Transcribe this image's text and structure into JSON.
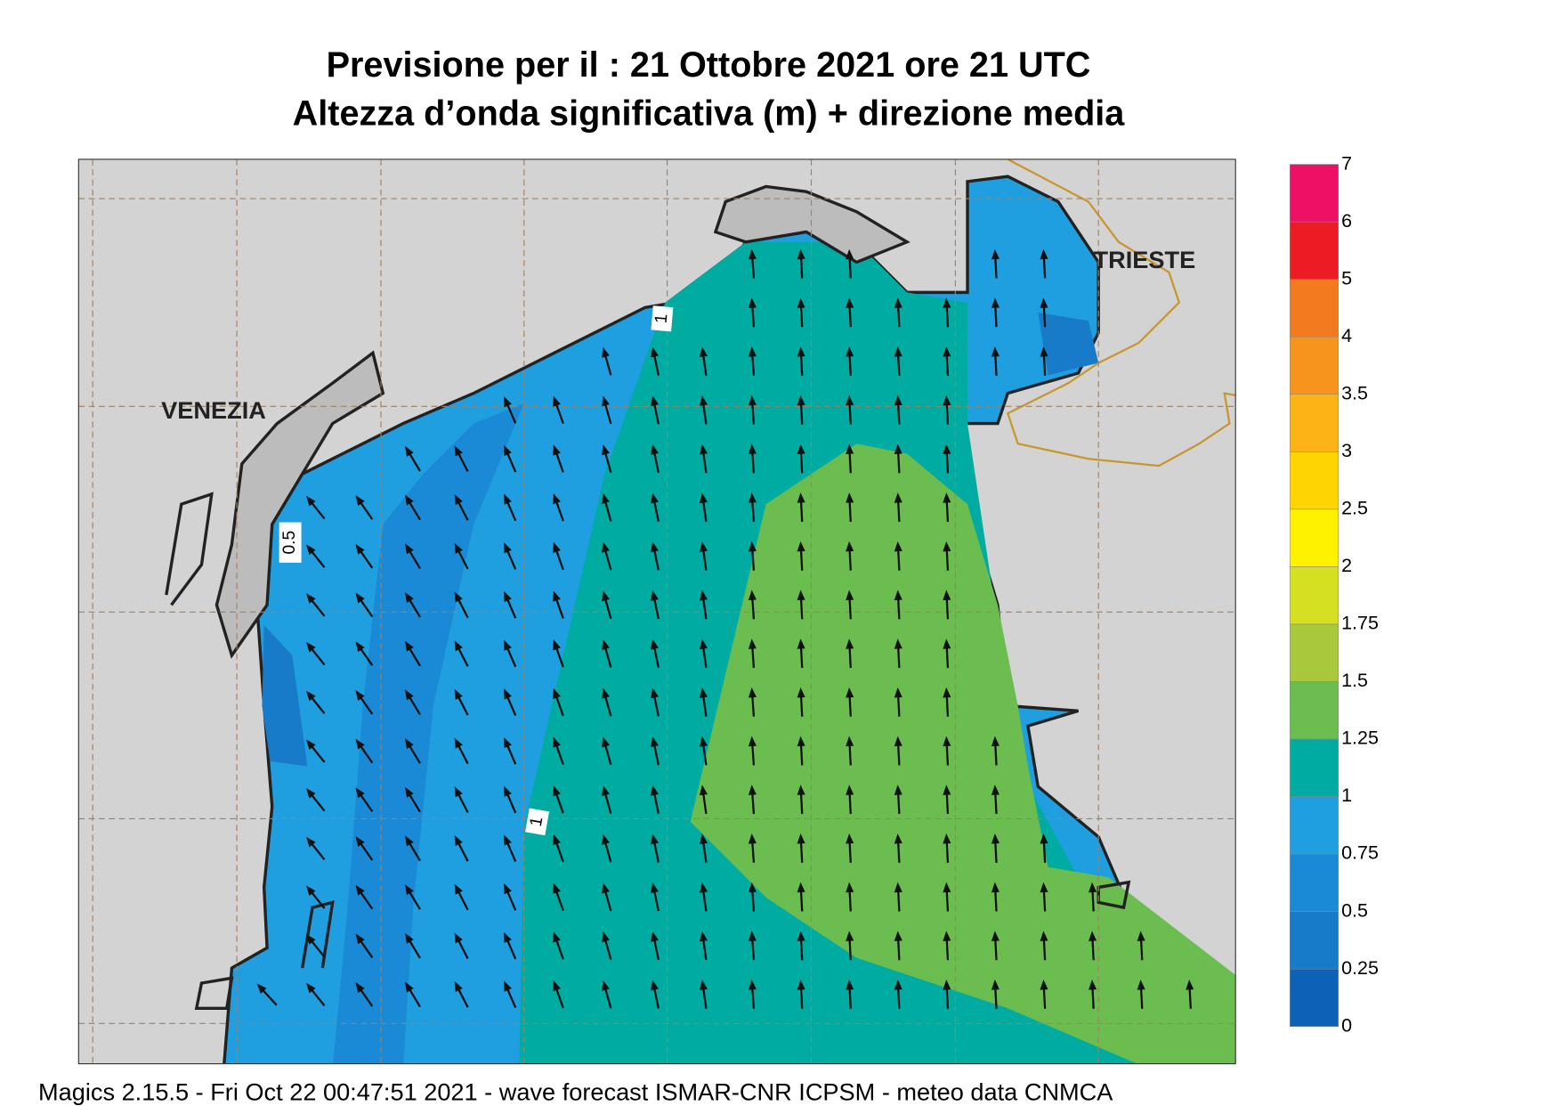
{
  "header": {
    "title": [
      "Previsione per il  :  21  Ottobre  2021   ore 21 UTC",
      "Altezza d’onda significativa (m) + direzione media"
    ]
  },
  "map": {
    "places": [
      "VENEZIA",
      "TRIESTE"
    ],
    "contour_labels": [
      "1",
      "0.5",
      "1"
    ]
  },
  "legend": {
    "levels": [
      0,
      0.25,
      0.5,
      0.75,
      1,
      1.25,
      1.5,
      1.75,
      2,
      2.5,
      3,
      3.5,
      4,
      5,
      6,
      7
    ],
    "colors": [
      "#0b62b6",
      "#177bca",
      "#1b8ad6",
      "#1f9fe0",
      "#00aba1",
      "#6cbd4f",
      "#a8c93b",
      "#d6e022",
      "#fff200",
      "#ffd400",
      "#fbb316",
      "#f7941d",
      "#f47a20",
      "#ec1c24",
      "#ec1164"
    ]
  },
  "footer": "Magics 2.15.5 - Fri Oct 22 00:47:51 2021 - wave forecast  ISMAR-CNR  ICPSM - meteo data   CNMCA"
}
